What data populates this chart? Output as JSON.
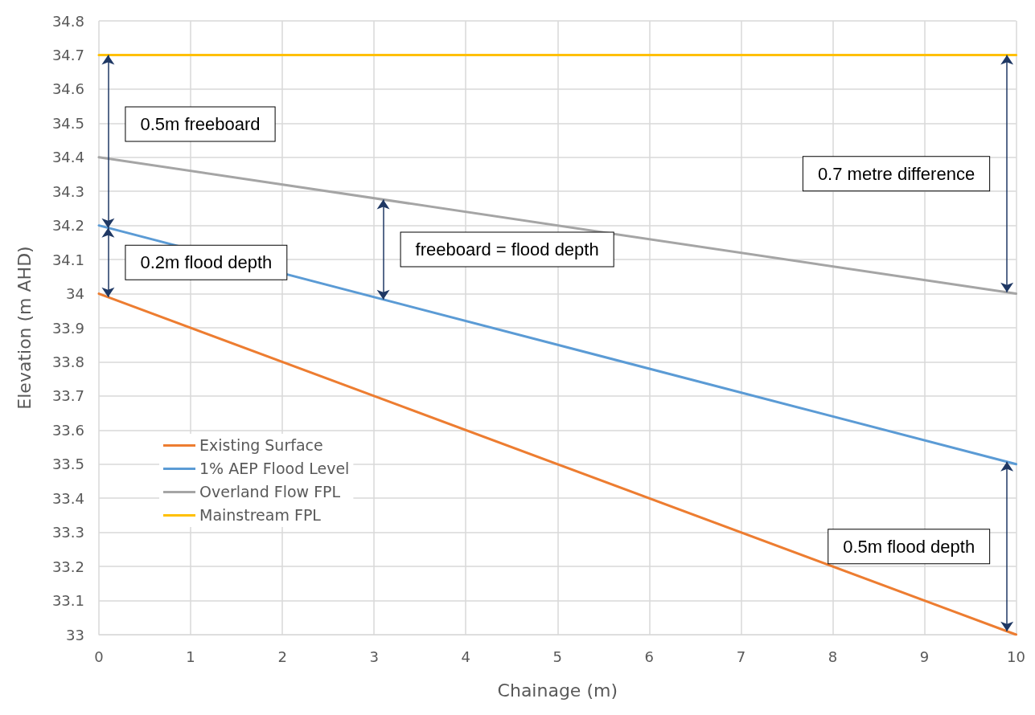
{
  "chart_data": {
    "type": "line",
    "xlabel": "Chainage (m)",
    "ylabel": "Elevation (m AHD)",
    "x": [
      0,
      10
    ],
    "series": [
      {
        "name": "Existing Surface",
        "color": "#ed7d31",
        "values": [
          34,
          33
        ]
      },
      {
        "name": "1% AEP Flood Level",
        "color": "#5b9bd5",
        "values": [
          34.2,
          33.5
        ]
      },
      {
        "name": "Overland Flow FPL",
        "color": "#a5a5a5",
        "values": [
          34.4,
          34
        ]
      },
      {
        "name": "Mainstream FPL",
        "color": "#ffc000",
        "values": [
          34.7,
          34.7
        ]
      }
    ],
    "xlim": [
      0,
      10
    ],
    "xticks": [
      0,
      1,
      2,
      3,
      4,
      5,
      6,
      7,
      8,
      9,
      10
    ],
    "ylim": [
      33,
      34.8
    ],
    "yticks": [
      33,
      33.1,
      33.2,
      33.3,
      33.4,
      33.5,
      33.6,
      33.7,
      33.8,
      33.9,
      34,
      34.1,
      34.2,
      34.3,
      34.4,
      34.5,
      34.6,
      34.7,
      34.8
    ],
    "annotations": [
      "0.5m freeboard",
      "0.2m flood depth",
      "freeboard = flood depth",
      "0.7 metre difference",
      "0.5m flood depth"
    ],
    "grid": true,
    "legend": "bottom left",
    "marker": "none",
    "line_style": "solid"
  }
}
